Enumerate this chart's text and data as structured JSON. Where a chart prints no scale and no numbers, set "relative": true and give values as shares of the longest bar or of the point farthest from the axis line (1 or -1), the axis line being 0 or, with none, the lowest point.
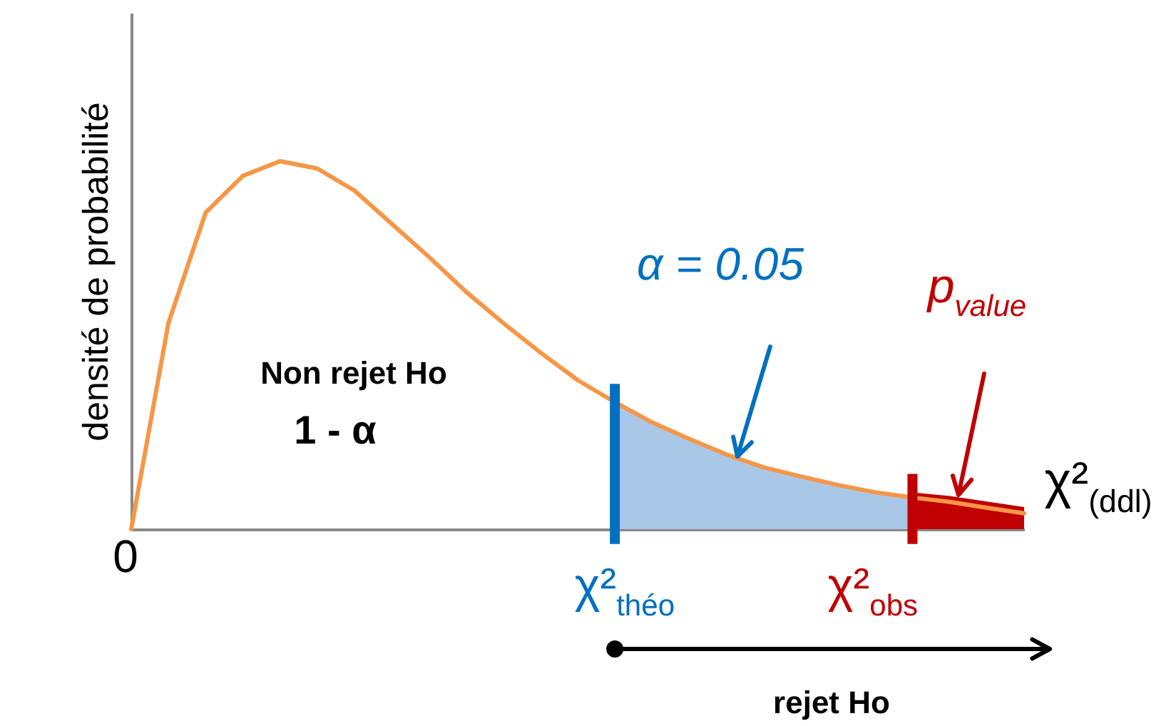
{
  "chart_data": {
    "type": "line",
    "relative": true,
    "ylabel": "densité de probabilité",
    "xlabel": "χ²$_{(ddl)}$",
    "categories": [
      null,
      null,
      null,
      null,
      null,
      null,
      null,
      null,
      null,
      null,
      null,
      null,
      null,
      null,
      null,
      null,
      null,
      null,
      null,
      null,
      null,
      null,
      null,
      null,
      null
    ],
    "series": [
      {
        "type": "area",
        "color": "#a9c8e8",
        "values": [
          null,
          null,
          null,
          null,
          null,
          null,
          null,
          null,
          null,
          null,
          null,
          null,
          null,
          0.345,
          0.29,
          0.245,
          0.203,
          0.168,
          0.143,
          0.12,
          0.1,
          0.086,
          null,
          null,
          null
        ]
      },
      {
        "type": "area",
        "color": "#c00000",
        "values": [
          null,
          null,
          null,
          null,
          null,
          null,
          null,
          null,
          null,
          null,
          null,
          null,
          null,
          null,
          null,
          null,
          null,
          null,
          null,
          null,
          null,
          0.1,
          0.09,
          0.075,
          0.06
        ]
      },
      {
        "color": "#f79646",
        "values": [
          0,
          0.56,
          0.86,
          0.96,
          1.0,
          0.98,
          0.92,
          0.83,
          0.74,
          0.645,
          0.56,
          0.48,
          0.405,
          0.345,
          0.29,
          0.245,
          0.203,
          0.168,
          0.143,
          0.12,
          0.1,
          0.086,
          0.074,
          0.058,
          0.043
        ]
      }
    ],
    "annotations": [
      "Non rejet Ho",
      "1 - α",
      "α = 0.05",
      "p$_{value}$",
      "χ²$_{théo}$",
      "χ²$_{obs}$",
      "rejet Ho",
      "0"
    ]
  }
}
